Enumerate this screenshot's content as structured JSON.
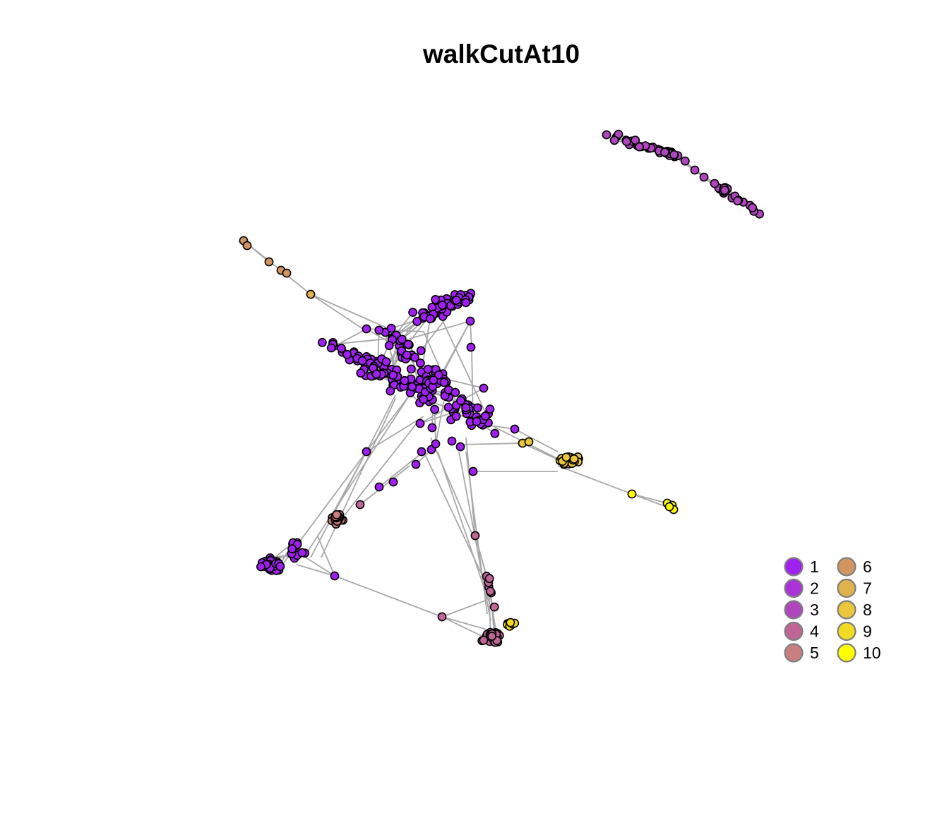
{
  "title": "walkCutAt10",
  "edge_color": "#a8a8a8",
  "node_border_color": "#000000",
  "legend": {
    "border_color": "#7f7f7f",
    "entries": [
      {
        "label": "1",
        "color": "#a020f0"
      },
      {
        "label": "2",
        "color": "#a933d8"
      },
      {
        "label": "3",
        "color": "#b046be"
      },
      {
        "label": "4",
        "color": "#bf6696"
      },
      {
        "label": "5",
        "color": "#c97f7f"
      },
      {
        "label": "6",
        "color": "#d2955f"
      },
      {
        "label": "7",
        "color": "#e0b24c"
      },
      {
        "label": "8",
        "color": "#e9c63a"
      },
      {
        "label": "9",
        "color": "#f2dc22"
      },
      {
        "label": "10",
        "color": "#ffff00"
      }
    ]
  }
}
